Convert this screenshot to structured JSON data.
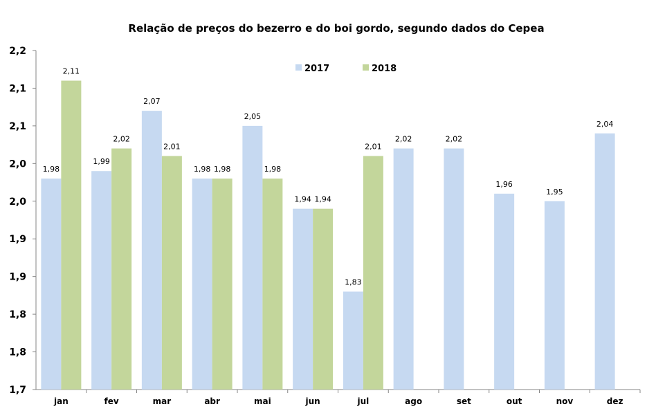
{
  "chart_data": {
    "type": "bar",
    "title": "Relação de preços do bezerro e do boi gordo, segundo dados do Cepea",
    "xlabel": "",
    "ylabel": "",
    "categories": [
      "jan",
      "fev",
      "mar",
      "abr",
      "mai",
      "jun",
      "jul",
      "ago",
      "set",
      "out",
      "nov",
      "dez"
    ],
    "series": [
      {
        "name": "2017",
        "color": "#c6d9f1",
        "values": [
          1.98,
          1.99,
          2.07,
          1.98,
          2.05,
          1.94,
          1.83,
          2.02,
          2.02,
          1.96,
          1.95,
          2.04
        ],
        "labels": [
          "1,98",
          "1,99",
          "2,07",
          "1,98",
          "2,05",
          "1,94",
          "1,83",
          "2,02",
          "2,02",
          "1,96",
          "1,95",
          "2,04"
        ]
      },
      {
        "name": "2018",
        "color": "#c3d69b",
        "values": [
          2.11,
          2.02,
          2.01,
          1.98,
          1.98,
          1.94,
          2.01,
          null,
          null,
          null,
          null,
          null
        ],
        "labels": [
          "2,11",
          "2,02",
          "2,01",
          "1,98",
          "1,98",
          "1,94",
          "2,01",
          null,
          null,
          null,
          null,
          null
        ]
      }
    ],
    "ylim": [
      1.7,
      2.15
    ],
    "yticks": [
      1.7,
      1.75,
      1.8,
      1.85,
      1.9,
      1.95,
      2.0,
      2.05,
      2.1,
      2.15
    ],
    "ytick_labels": [
      "1,7",
      "1,8",
      "1,8",
      "1,9",
      "1,9",
      "2,0",
      "2,0",
      "2,1",
      "2,1",
      "2,2"
    ],
    "grid": false,
    "legend_position": "top-center"
  }
}
